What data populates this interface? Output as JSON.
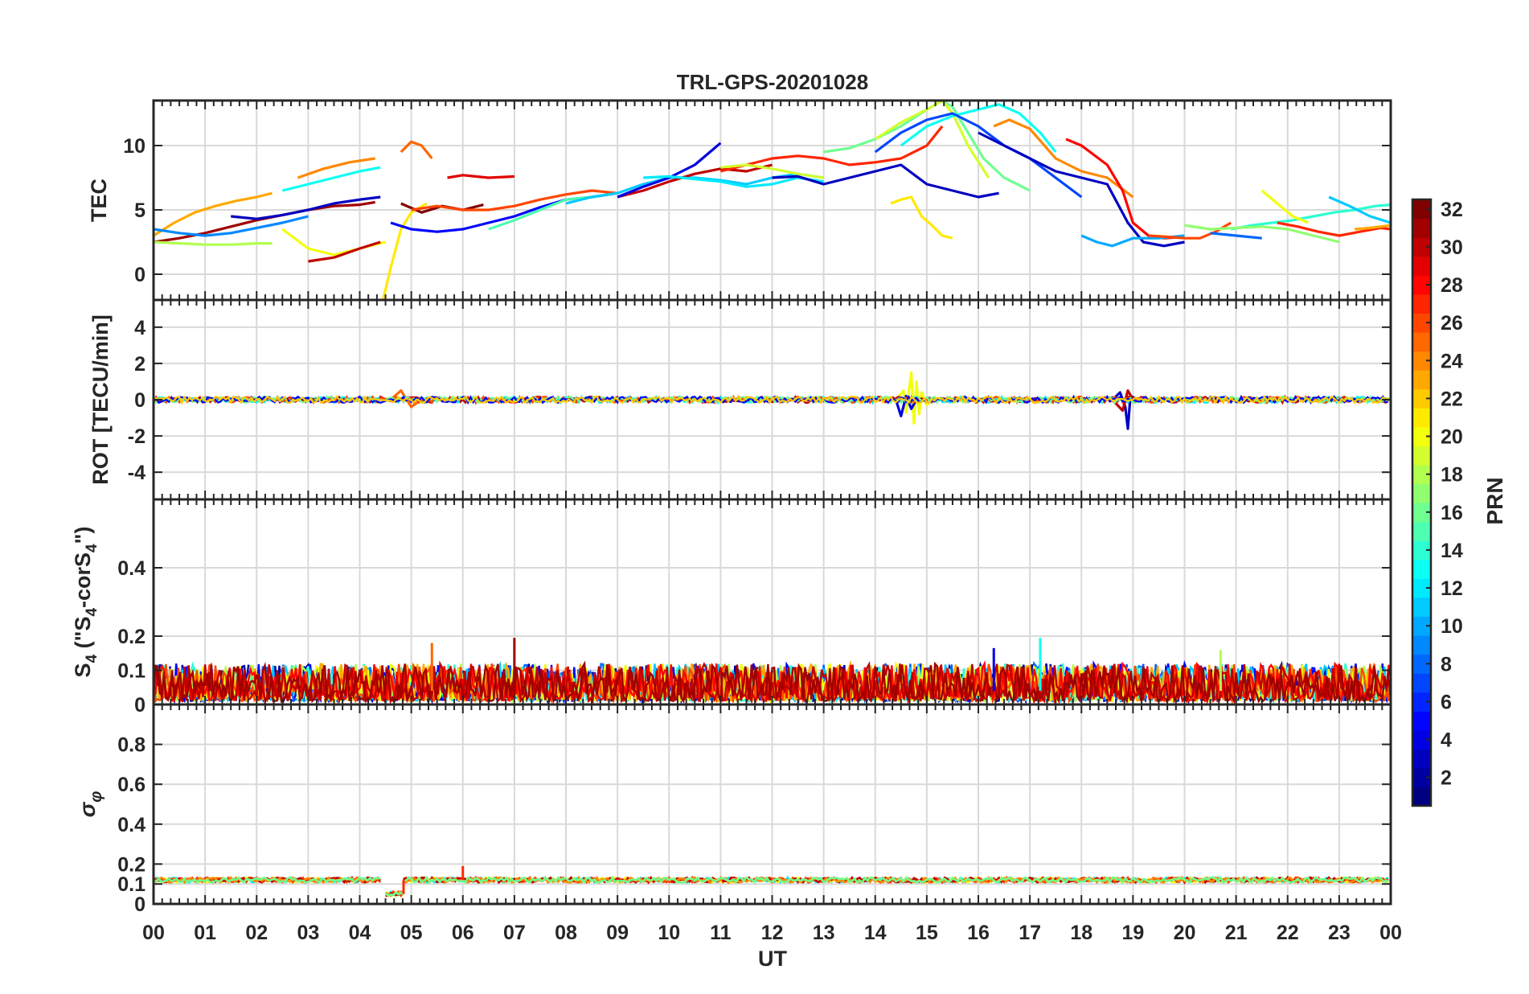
{
  "figure": {
    "title": "TRL-GPS-20201028",
    "colors": {
      "axis": "#262626",
      "grid": "#d9d9d9",
      "background": "#ffffff"
    }
  },
  "chart_data": [
    {
      "type": "line",
      "panel": "tec",
      "ylabel": "TEC",
      "ylim": [
        -2,
        13.5
      ],
      "yticks": [
        0,
        5,
        10
      ],
      "grid": true,
      "series": [
        {
          "prn": 31,
          "x": [
            0.0,
            0.5,
            1.0,
            1.5,
            2.0,
            2.5,
            3.0,
            3.5,
            4.0,
            4.3
          ],
          "y": [
            2.5,
            2.8,
            3.2,
            3.7,
            4.2,
            4.6,
            5.0,
            5.3,
            5.4,
            5.6
          ]
        },
        {
          "prn": 23,
          "x": [
            0.0,
            0.4,
            0.8,
            1.2,
            1.6,
            2.0,
            2.3
          ],
          "y": [
            3.0,
            4.0,
            4.8,
            5.3,
            5.7,
            6.0,
            6.3
          ]
        },
        {
          "prn": 18,
          "x": [
            0.0,
            0.5,
            1.0,
            1.5,
            2.0,
            2.3
          ],
          "y": [
            2.5,
            2.4,
            2.3,
            2.3,
            2.4,
            2.4
          ]
        },
        {
          "prn": 9,
          "x": [
            0.0,
            0.5,
            1.0,
            1.5,
            2.0,
            2.5,
            3.0
          ],
          "y": [
            3.5,
            3.2,
            3.0,
            3.2,
            3.6,
            4.0,
            4.5
          ]
        },
        {
          "prn": 3,
          "x": [
            1.5,
            2.0,
            2.5,
            3.0,
            3.5,
            4.0,
            4.4
          ],
          "y": [
            4.5,
            4.3,
            4.6,
            5.0,
            5.5,
            5.8,
            6.0
          ]
        },
        {
          "prn": 13,
          "x": [
            2.5,
            3.0,
            3.5,
            4.0,
            4.4
          ],
          "y": [
            6.5,
            7.0,
            7.5,
            8.0,
            8.3
          ]
        },
        {
          "prn": 24,
          "x": [
            2.8,
            3.3,
            3.8,
            4.3
          ],
          "y": [
            7.5,
            8.2,
            8.7,
            9.0
          ]
        },
        {
          "prn": 20,
          "x": [
            2.5,
            3.0,
            3.5,
            4.0,
            4.5
          ],
          "y": [
            3.5,
            2.0,
            1.5,
            2.0,
            2.5
          ]
        },
        {
          "prn": 30,
          "x": [
            3.0,
            3.5,
            4.0,
            4.4
          ],
          "y": [
            1.0,
            1.3,
            2.0,
            2.5
          ]
        },
        {
          "prn": 21,
          "x": [
            4.45,
            4.6,
            4.8,
            5.0,
            5.3
          ],
          "y": [
            -2.0,
            0.5,
            3.5,
            4.8,
            5.5
          ]
        },
        {
          "prn": 25,
          "x": [
            4.8,
            5.0,
            5.2,
            5.4
          ],
          "y": [
            9.5,
            10.3,
            10.0,
            9.0
          ]
        },
        {
          "prn": 5,
          "x": [
            4.6,
            5.0,
            5.5,
            6.0,
            6.5,
            7.0,
            7.5,
            8.0,
            8.5,
            9.0
          ],
          "y": [
            4.0,
            3.5,
            3.3,
            3.5,
            4.0,
            4.5,
            5.2,
            5.8,
            6.0,
            6.3
          ]
        },
        {
          "prn": 29,
          "x": [
            5.7,
            6.0,
            6.5,
            7.0
          ],
          "y": [
            7.5,
            7.7,
            7.5,
            7.6
          ]
        },
        {
          "prn": 32,
          "x": [
            4.8,
            5.2,
            5.6,
            6.0,
            6.4
          ],
          "y": [
            5.5,
            4.8,
            5.3,
            5.0,
            5.4
          ]
        },
        {
          "prn": 26,
          "x": [
            5.0,
            5.5,
            6.0,
            6.5,
            7.0,
            7.5,
            8.0,
            8.5,
            9.0
          ],
          "y": [
            5.0,
            5.3,
            5.0,
            5.0,
            5.3,
            5.8,
            6.2,
            6.5,
            6.3
          ]
        },
        {
          "prn": 15,
          "x": [
            6.5,
            7.0,
            7.5,
            8.0,
            8.5,
            9.0
          ],
          "y": [
            3.5,
            4.2,
            5.0,
            5.8,
            6.0,
            6.3
          ]
        },
        {
          "prn": 11,
          "x": [
            8.0,
            8.5,
            9.0,
            9.5,
            10.0,
            10.5,
            11.0,
            11.5,
            12.0,
            12.5,
            13.0
          ],
          "y": [
            5.5,
            6.0,
            6.3,
            7.0,
            7.5,
            7.5,
            7.3,
            7.0,
            7.5,
            7.8,
            7.5
          ]
        },
        {
          "prn": 30,
          "x": [
            9.0,
            9.5,
            10.0,
            10.5,
            11.0,
            11.5,
            12.0
          ],
          "y": [
            6.0,
            6.5,
            7.2,
            7.8,
            8.2,
            8.0,
            8.5
          ]
        },
        {
          "prn": 4,
          "x": [
            9.0,
            9.5,
            10.0,
            10.5,
            11.0
          ],
          "y": [
            6.0,
            6.8,
            7.5,
            8.5,
            10.2
          ]
        },
        {
          "prn": 12,
          "x": [
            9.5,
            10.0,
            10.5,
            11.0,
            11.5,
            12.0,
            12.5,
            13.0
          ],
          "y": [
            7.5,
            7.6,
            7.4,
            7.2,
            6.8,
            7.0,
            7.5,
            7.2
          ]
        },
        {
          "prn": 27,
          "x": [
            11.0,
            11.5,
            12.0,
            12.5,
            13.0,
            13.5,
            14.0,
            14.5,
            15.0,
            15.3
          ],
          "y": [
            8.0,
            8.5,
            9.0,
            9.2,
            9.0,
            8.5,
            8.7,
            9.0,
            10.0,
            11.5
          ]
        },
        {
          "prn": 19,
          "x": [
            11.0,
            11.5,
            12.0,
            12.5,
            13.0
          ],
          "y": [
            8.3,
            8.5,
            8.2,
            7.8,
            7.5
          ]
        },
        {
          "prn": 3,
          "x": [
            12.0,
            12.5,
            13.0,
            13.5,
            14.0,
            14.5,
            15.0,
            15.5,
            16.0,
            16.4
          ],
          "y": [
            7.5,
            7.6,
            7.0,
            7.5,
            8.0,
            8.5,
            7.0,
            6.5,
            6.0,
            6.3
          ]
        },
        {
          "prn": 16,
          "x": [
            13.0,
            13.5,
            14.0,
            14.5,
            15.0,
            15.3,
            15.5,
            15.8,
            16.1,
            16.5,
            17.0
          ],
          "y": [
            9.5,
            9.8,
            10.5,
            11.5,
            12.8,
            13.5,
            13.0,
            11.0,
            9.0,
            7.5,
            6.5
          ]
        },
        {
          "prn": 19,
          "x": [
            14.0,
            14.5,
            15.0,
            15.3,
            15.5,
            15.8,
            16.2
          ],
          "y": [
            10.5,
            11.8,
            12.8,
            13.5,
            12.5,
            10.0,
            7.5
          ]
        },
        {
          "prn": 13,
          "x": [
            14.5,
            15.0,
            15.5,
            16.0,
            16.4,
            16.8,
            17.2,
            17.5
          ],
          "y": [
            10.0,
            11.5,
            12.3,
            12.8,
            13.2,
            12.5,
            11.0,
            9.5
          ]
        },
        {
          "prn": 7,
          "x": [
            14.0,
            14.5,
            15.0,
            15.5,
            16.0,
            16.5,
            17.0,
            17.5,
            18.0
          ],
          "y": [
            9.5,
            11.0,
            12.0,
            12.5,
            11.5,
            10.0,
            9.0,
            7.5,
            6.0
          ]
        },
        {
          "prn": 24,
          "x": [
            16.3,
            16.6,
            17.0,
            17.5,
            18.0,
            18.5,
            19.0
          ],
          "y": [
            11.5,
            12.0,
            11.3,
            9.0,
            8.0,
            7.5,
            6.0
          ]
        },
        {
          "prn": 28,
          "x": [
            17.7,
            18.0,
            18.5,
            18.8,
            19.0,
            19.3,
            19.6,
            20.0
          ],
          "y": [
            10.5,
            10.0,
            8.5,
            6.5,
            4.0,
            3.0,
            2.8,
            2.9
          ]
        },
        {
          "prn": 3,
          "x": [
            16.0,
            16.5,
            17.0,
            17.5,
            18.0,
            18.5,
            18.9,
            19.2,
            19.6,
            20.0
          ],
          "y": [
            11.0,
            10.0,
            9.0,
            8.0,
            7.5,
            7.0,
            4.0,
            2.5,
            2.2,
            2.5
          ]
        },
        {
          "prn": 21,
          "x": [
            14.3,
            14.5,
            14.7,
            14.9,
            15.1,
            15.3,
            15.5
          ],
          "y": [
            5.5,
            5.8,
            6.0,
            4.5,
            3.8,
            3.0,
            2.8
          ]
        },
        {
          "prn": 10,
          "x": [
            18.0,
            18.3,
            18.6,
            19.0,
            19.5,
            20.0
          ],
          "y": [
            3.0,
            2.5,
            2.2,
            2.8,
            2.8,
            3.0
          ]
        },
        {
          "prn": 26,
          "x": [
            19.3,
            19.7,
            20.0,
            20.3,
            20.6,
            20.9
          ],
          "y": [
            3.0,
            2.9,
            2.8,
            2.8,
            3.3,
            4.0
          ]
        },
        {
          "prn": 14,
          "x": [
            20.9,
            21.3,
            21.7,
            22.1,
            22.5,
            22.9,
            23.3,
            23.7,
            24.0
          ],
          "y": [
            3.5,
            3.8,
            4.0,
            4.2,
            4.5,
            4.8,
            5.0,
            5.3,
            5.4
          ]
        },
        {
          "prn": 17,
          "x": [
            20.0,
            20.5,
            21.0,
            21.5,
            22.0,
            22.5,
            23.0
          ],
          "y": [
            3.8,
            3.5,
            3.6,
            3.7,
            3.5,
            3.0,
            2.5
          ]
        },
        {
          "prn": 8,
          "x": [
            20.5,
            21.0,
            21.5
          ],
          "y": [
            3.2,
            3.0,
            2.8
          ]
        },
        {
          "prn": 20,
          "x": [
            21.5,
            21.8,
            22.1,
            22.4
          ],
          "y": [
            6.5,
            5.5,
            4.5,
            4.0
          ]
        },
        {
          "prn": 27,
          "x": [
            21.8,
            22.2,
            22.6,
            23.0,
            23.4,
            23.8,
            24.0
          ],
          "y": [
            4.0,
            3.7,
            3.3,
            3.0,
            3.3,
            3.6,
            3.5
          ]
        },
        {
          "prn": 11,
          "x": [
            22.8,
            23.2,
            23.6,
            24.0
          ],
          "y": [
            6.0,
            5.3,
            4.5,
            4.0
          ]
        },
        {
          "prn": 23,
          "x": [
            23.3,
            23.6,
            24.0
          ],
          "y": [
            3.5,
            3.6,
            3.8
          ]
        }
      ]
    },
    {
      "type": "line",
      "panel": "rot",
      "ylabel": "ROT [TECU/min]",
      "ylim": [
        -5.5,
        5.5
      ],
      "yticks": [
        -4,
        -2,
        0,
        2,
        4
      ],
      "grid": true,
      "series": [
        {
          "prn": 30,
          "x": [
            0.0,
            4.4
          ],
          "y": [
            0.0,
            0.0
          ]
        },
        {
          "prn": 12,
          "x": [
            0.0,
            4.4
          ],
          "y": [
            0.05,
            0.05
          ]
        },
        {
          "prn": 26,
          "x": [
            4.5,
            24.0
          ],
          "y": [
            0.0,
            0.0
          ]
        },
        {
          "prn": 16,
          "x": [
            4.5,
            24.0
          ],
          "y": [
            0.05,
            0.05
          ]
        },
        {
          "prn": 20,
          "x": [
            14.4,
            14.55,
            14.6,
            14.7,
            14.75,
            14.8,
            14.85,
            14.9,
            15.0,
            15.1
          ],
          "y": [
            0.0,
            0.5,
            -0.7,
            1.5,
            -1.3,
            1.0,
            -0.8,
            0.4,
            -0.3,
            0.0
          ]
        },
        {
          "prn": 4,
          "x": [
            14.4,
            14.5,
            14.6,
            14.7,
            14.8
          ],
          "y": [
            0.0,
            -0.9,
            0.2,
            -0.5,
            0.0
          ]
        },
        {
          "prn": 3,
          "x": [
            18.6,
            18.75,
            18.85,
            18.9,
            18.95,
            19.1
          ],
          "y": [
            0.0,
            0.4,
            -0.4,
            -1.6,
            0.2,
            0.0
          ]
        },
        {
          "prn": 30,
          "x": [
            18.6,
            18.8,
            18.9,
            19.0
          ],
          "y": [
            0.0,
            -0.6,
            0.5,
            0.0
          ]
        },
        {
          "prn": 25,
          "x": [
            4.6,
            4.8,
            5.0,
            5.2
          ],
          "y": [
            0.0,
            0.5,
            -0.4,
            0.0
          ]
        }
      ]
    },
    {
      "type": "line",
      "panel": "s4",
      "ylabel": "S4 (\"S4-corS4\")",
      "ylim": [
        0,
        0.6
      ],
      "yticks": [
        0,
        0.1,
        0.2,
        0.4
      ],
      "grid": true,
      "noise_band": [
        0.01,
        0.12
      ],
      "spikes": [
        {
          "x": 7.0,
          "y": 0.195
        },
        {
          "x": 17.2,
          "y": 0.195
        },
        {
          "x": 5.4,
          "y": 0.18
        },
        {
          "x": 16.3,
          "y": 0.165
        },
        {
          "x": 20.7,
          "y": 0.16
        }
      ]
    },
    {
      "type": "line",
      "panel": "sigma_phi",
      "ylabel": "σφ",
      "ylim": [
        0,
        1
      ],
      "yticks": [
        0,
        0.1,
        0.2,
        0.4,
        0.6,
        0.8
      ],
      "grid": true,
      "segments": [
        {
          "x": [
            0.0,
            4.4
          ],
          "y": [
            0.12,
            0.12
          ]
        },
        {
          "x": [
            4.5,
            4.85
          ],
          "y": [
            0.05,
            0.05
          ]
        },
        {
          "x": [
            4.85,
            24.0
          ],
          "y": [
            0.12,
            0.12
          ]
        }
      ],
      "spikes": [
        {
          "x": 6.0,
          "y": 0.19
        }
      ]
    }
  ],
  "x_axis": {
    "label": "UT",
    "ticks": [
      "00",
      "01",
      "02",
      "03",
      "04",
      "05",
      "06",
      "07",
      "08",
      "09",
      "10",
      "11",
      "12",
      "13",
      "14",
      "15",
      "16",
      "17",
      "18",
      "19",
      "20",
      "21",
      "22",
      "23",
      "00"
    ],
    "range": [
      0,
      24
    ]
  },
  "colorbar": {
    "label": "PRN",
    "range": [
      1,
      32
    ],
    "ticks": [
      "2",
      "4",
      "6",
      "8",
      "10",
      "12",
      "14",
      "16",
      "18",
      "20",
      "22",
      "24",
      "26",
      "28",
      "30",
      "32"
    ],
    "colormap": "jet"
  }
}
